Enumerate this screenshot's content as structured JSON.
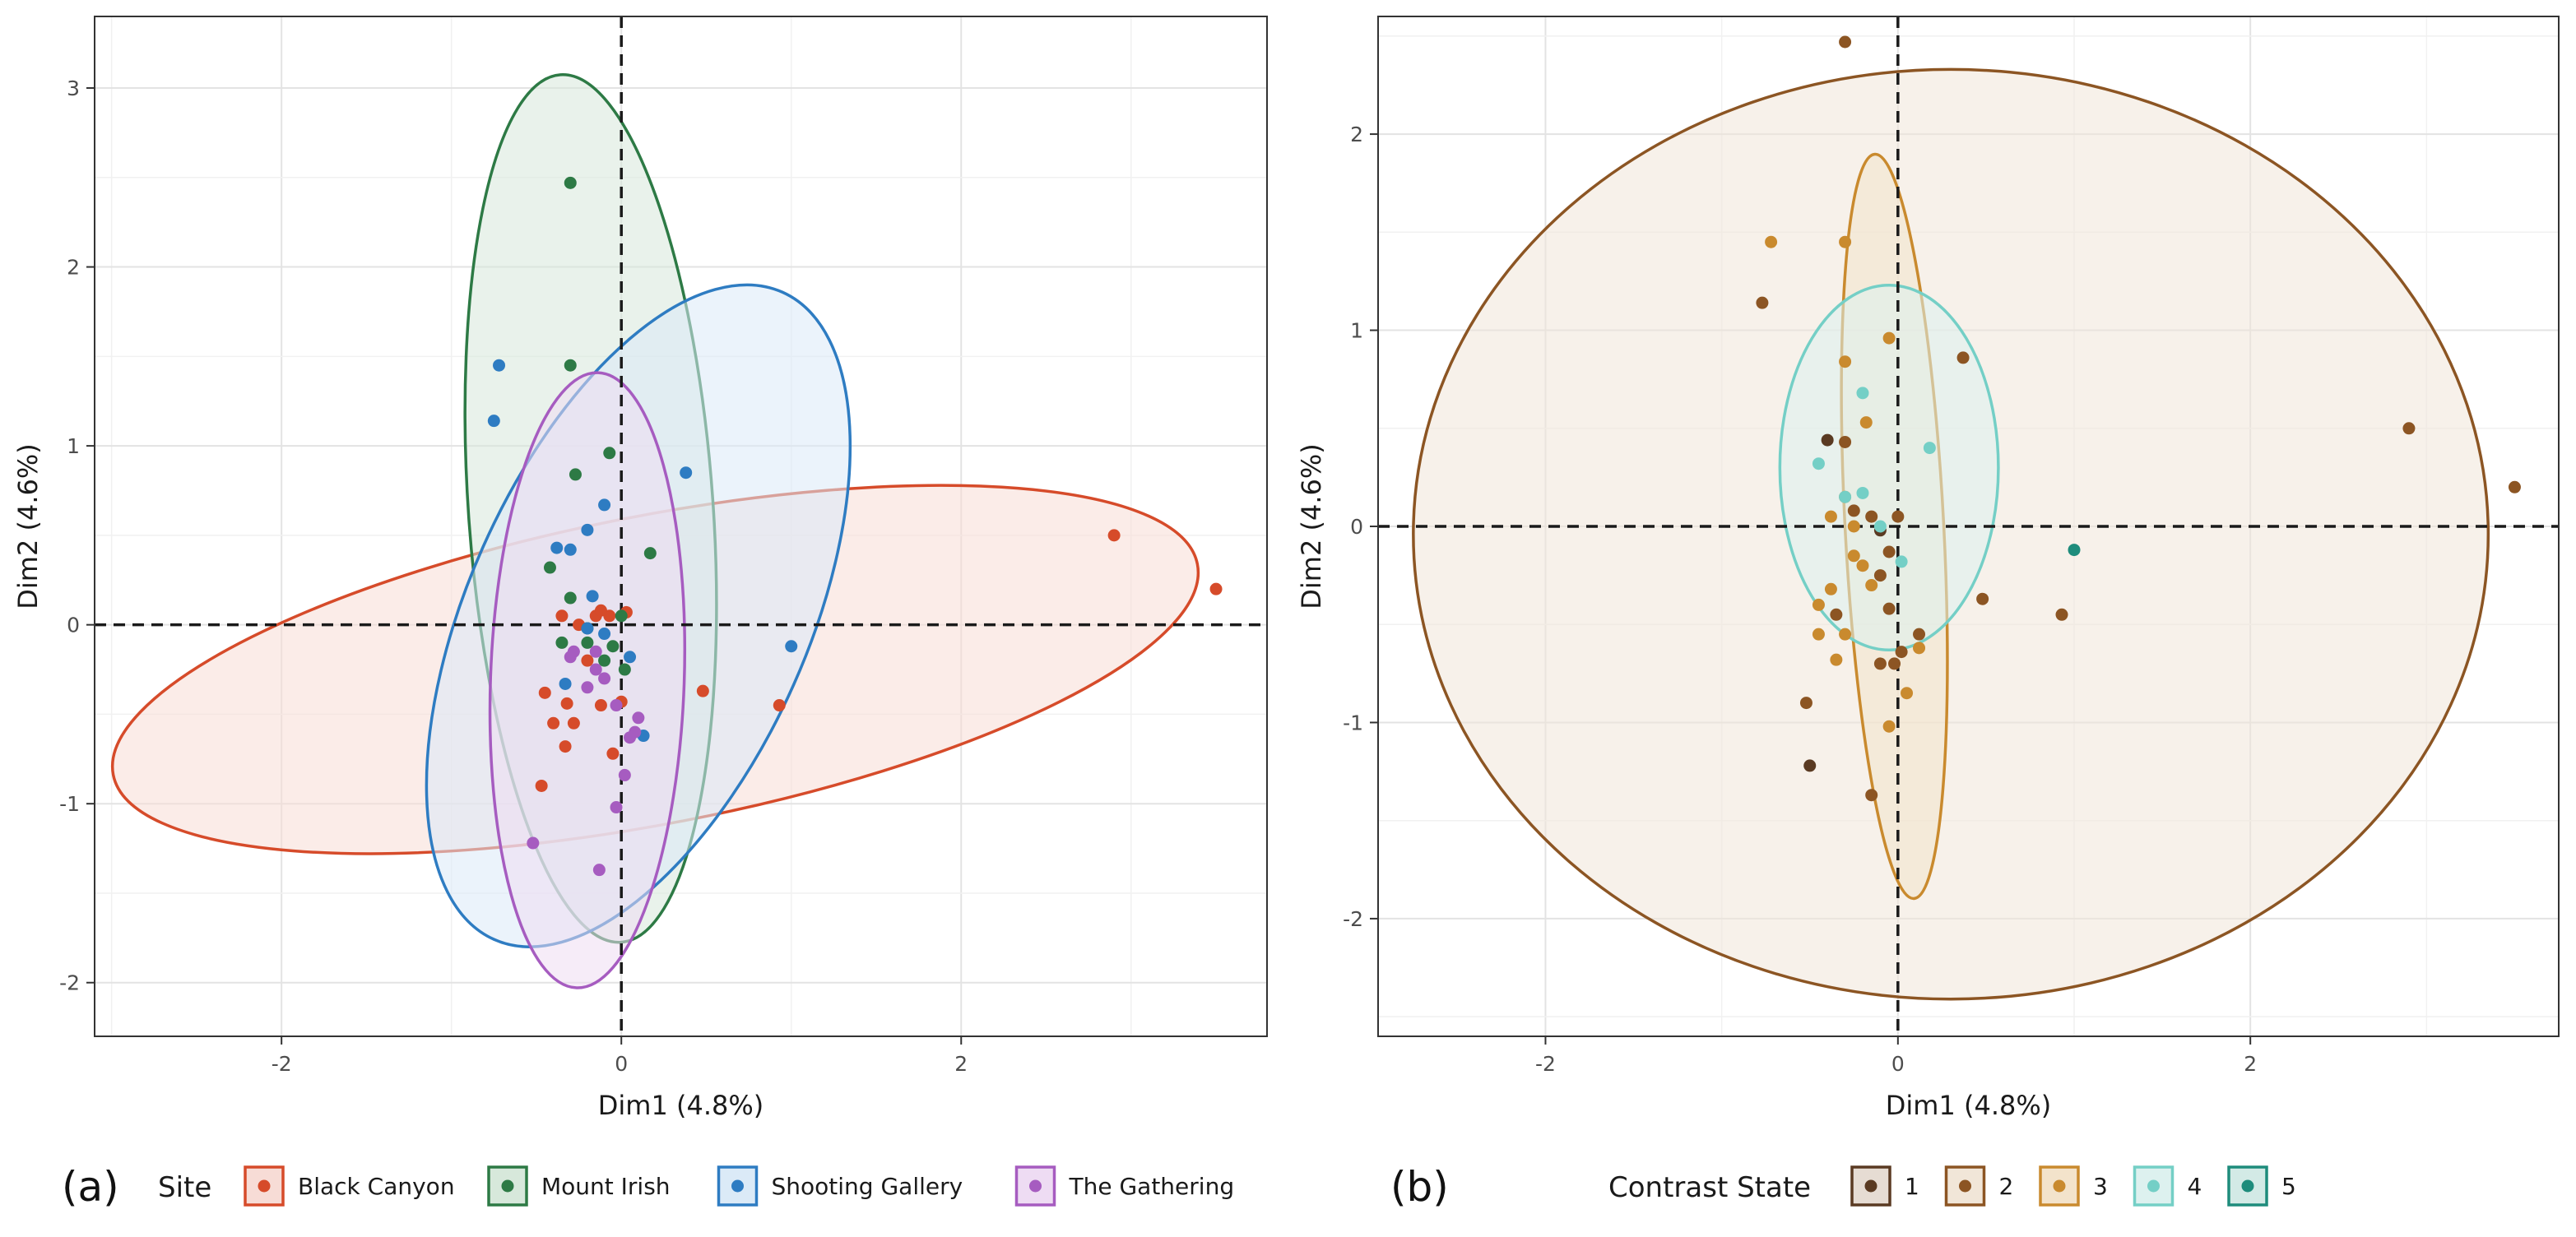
{
  "chart_data": [
    {
      "panel_label": "(a)",
      "type": "scatter",
      "xlabel": "Dim1 (4.8%)",
      "ylabel": "Dim2 (4.6%)",
      "xlim": [
        -3.1,
        3.8
      ],
      "ylim": [
        -2.3,
        3.4
      ],
      "x_ticks": [
        -2,
        0,
        2
      ],
      "y_ticks": [
        -2,
        -1,
        0,
        1,
        2,
        3
      ],
      "x_tick_labels": [
        "-2",
        "0",
        "2"
      ],
      "y_tick_labels": [
        "-2",
        "-1",
        "0",
        "1",
        "2",
        "3"
      ],
      "grid": true,
      "reference_lines": {
        "x": 0,
        "y": 0
      },
      "legend": {
        "title": "Site",
        "position": "bottom"
      },
      "series": [
        {
          "name": "Black Canyon",
          "color": "#D64B2A",
          "fill": "#F7DCD6",
          "ellipse": {
            "cx": 0.2,
            "cy": -0.25,
            "rx": 3.25,
            "ry": 0.86,
            "angle_deg": 11
          },
          "points": [
            [
              2.9,
              0.5
            ],
            [
              3.5,
              0.2
            ],
            [
              0.93,
              -0.45
            ],
            [
              0.48,
              -0.37
            ],
            [
              -0.45,
              -0.38
            ],
            [
              -0.4,
              -0.55
            ],
            [
              -0.32,
              -0.44
            ],
            [
              -0.28,
              -0.55
            ],
            [
              -0.33,
              -0.68
            ],
            [
              -0.12,
              -0.45
            ],
            [
              0.0,
              -0.43
            ],
            [
              -0.05,
              -0.72
            ],
            [
              -0.47,
              -0.9
            ],
            [
              -0.35,
              0.05
            ],
            [
              -0.15,
              0.05
            ],
            [
              -0.07,
              0.05
            ],
            [
              0.03,
              0.07
            ],
            [
              -0.25,
              0.0
            ],
            [
              -0.12,
              0.08
            ],
            [
              -0.2,
              -0.2
            ]
          ]
        },
        {
          "name": "Mount Irish",
          "color": "#2D7A45",
          "fill": "#D7E8DB",
          "ellipse": {
            "cx": -0.18,
            "cy": 0.65,
            "rx": 0.72,
            "ry": 2.43,
            "angle_deg": 4
          },
          "points": [
            [
              -0.3,
              2.47
            ],
            [
              -0.3,
              1.45
            ],
            [
              -0.27,
              0.84
            ],
            [
              -0.07,
              0.96
            ],
            [
              0.17,
              0.4
            ],
            [
              -0.42,
              0.32
            ],
            [
              -0.3,
              0.15
            ],
            [
              0.0,
              0.05
            ],
            [
              -0.05,
              -0.12
            ],
            [
              -0.2,
              -0.02
            ],
            [
              -0.35,
              -0.1
            ],
            [
              0.02,
              -0.25
            ],
            [
              -0.1,
              -0.2
            ],
            [
              -0.2,
              -0.1
            ]
          ]
        },
        {
          "name": "Shooting Gallery",
          "color": "#2E7CC2",
          "fill": "#DBEAF7",
          "ellipse": {
            "cx": 0.1,
            "cy": 0.05,
            "rx": 1.0,
            "ry": 1.98,
            "angle_deg": -24
          },
          "points": [
            [
              -0.72,
              1.45
            ],
            [
              -0.75,
              1.14
            ],
            [
              0.38,
              0.85
            ],
            [
              -0.1,
              0.67
            ],
            [
              -0.2,
              0.53
            ],
            [
              -0.38,
              0.43
            ],
            [
              -0.3,
              0.42
            ],
            [
              1.0,
              -0.12
            ],
            [
              -0.17,
              0.16
            ],
            [
              -0.2,
              -0.02
            ],
            [
              0.05,
              -0.18
            ],
            [
              -0.33,
              -0.33
            ],
            [
              0.13,
              -0.62
            ],
            [
              -0.1,
              -0.05
            ]
          ]
        },
        {
          "name": "The Gathering",
          "color": "#A65CC0",
          "fill": "#EEDCF3",
          "ellipse": {
            "cx": -0.2,
            "cy": -0.31,
            "rx": 0.57,
            "ry": 1.72,
            "angle_deg": -2
          },
          "points": [
            [
              -0.52,
              -1.22
            ],
            [
              -0.13,
              -1.37
            ],
            [
              -0.03,
              -1.02
            ],
            [
              0.02,
              -0.84
            ],
            [
              0.05,
              -0.63
            ],
            [
              0.1,
              -0.52
            ],
            [
              0.08,
              -0.6
            ],
            [
              -0.03,
              -0.45
            ],
            [
              -0.15,
              -0.15
            ],
            [
              -0.28,
              -0.15
            ],
            [
              -0.15,
              -0.25
            ],
            [
              -0.3,
              -0.18
            ],
            [
              -0.1,
              -0.3
            ],
            [
              -0.2,
              -0.35
            ]
          ]
        }
      ]
    },
    {
      "panel_label": "(b)",
      "type": "scatter",
      "xlabel": "Dim1 (4.8%)",
      "ylabel": "Dim2 (4.6%)",
      "xlim": [
        -2.95,
        3.75
      ],
      "ylim": [
        -2.6,
        2.6
      ],
      "x_ticks": [
        -2,
        0,
        2
      ],
      "y_ticks": [
        -2,
        -1,
        0,
        1,
        2
      ],
      "x_tick_labels": [
        "-2",
        "0",
        "2"
      ],
      "y_tick_labels": [
        "-2",
        "-1",
        "0",
        "1",
        "2"
      ],
      "grid": true,
      "reference_lines": {
        "x": 0,
        "y": 0
      },
      "legend": {
        "title": "Contrast State",
        "position": "bottom"
      },
      "series": [
        {
          "name": "1",
          "color": "#5A3A22",
          "fill": "#E6DCD3",
          "points": [
            [
              -0.4,
              0.44
            ],
            [
              -0.1,
              -0.02
            ],
            [
              -0.5,
              -1.22
            ]
          ]
        },
        {
          "name": "2",
          "color": "#8C5523",
          "fill": "#F1E6D8",
          "ellipse": {
            "cx": 0.3,
            "cy": -0.04,
            "rx": 3.05,
            "ry": 2.37,
            "angle_deg": 0
          },
          "points": [
            [
              -0.3,
              2.47
            ],
            [
              -0.77,
              1.14
            ],
            [
              -0.3,
              0.43
            ],
            [
              0.37,
              0.86
            ],
            [
              2.9,
              0.5
            ],
            [
              3.5,
              0.2
            ],
            [
              0.93,
              -0.45
            ],
            [
              0.48,
              -0.37
            ],
            [
              0.12,
              -0.55
            ],
            [
              -0.05,
              -0.42
            ],
            [
              0.02,
              -0.64
            ],
            [
              -0.02,
              -0.7
            ],
            [
              -0.1,
              -0.7
            ],
            [
              -0.05,
              -0.13
            ],
            [
              -0.15,
              0.05
            ],
            [
              -0.1,
              -0.25
            ],
            [
              0.0,
              0.05
            ],
            [
              -0.35,
              -0.45
            ],
            [
              -0.52,
              -0.9
            ],
            [
              -0.15,
              -1.37
            ],
            [
              -0.25,
              0.08
            ]
          ]
        },
        {
          "name": "3",
          "color": "#C98A2E",
          "fill": "#F3E3CB",
          "ellipse": {
            "cx": -0.02,
            "cy": 0.0,
            "rx": 0.28,
            "ry": 1.9,
            "angle_deg": 3
          },
          "points": [
            [
              -0.72,
              1.45
            ],
            [
              -0.3,
              1.45
            ],
            [
              -0.05,
              0.96
            ],
            [
              -0.3,
              0.84
            ],
            [
              -0.18,
              0.53
            ],
            [
              -0.38,
              0.05
            ],
            [
              -0.3,
              0.15
            ],
            [
              -0.25,
              -0.15
            ],
            [
              -0.45,
              -0.4
            ],
            [
              -0.38,
              -0.32
            ],
            [
              -0.35,
              -0.68
            ],
            [
              -0.3,
              -0.55
            ],
            [
              -0.45,
              -0.55
            ],
            [
              -0.2,
              -0.2
            ],
            [
              0.05,
              -0.85
            ],
            [
              -0.05,
              -1.02
            ],
            [
              0.12,
              -0.62
            ],
            [
              -0.15,
              -0.3
            ],
            [
              -0.25,
              0.0
            ]
          ]
        },
        {
          "name": "4",
          "color": "#74CFC6",
          "fill": "#DDF1EF",
          "ellipse": {
            "cx": -0.05,
            "cy": 0.3,
            "rx": 0.62,
            "ry": 0.93,
            "angle_deg": 0
          },
          "points": [
            [
              -0.2,
              0.68
            ],
            [
              0.18,
              0.4
            ],
            [
              -0.45,
              0.32
            ],
            [
              -0.3,
              0.15
            ],
            [
              -0.2,
              0.17
            ],
            [
              0.02,
              -0.18
            ],
            [
              -0.1,
              0.0
            ]
          ]
        },
        {
          "name": "5",
          "color": "#1E8C7C",
          "fill": "#D3EAE6",
          "points": [
            [
              1.0,
              -0.12
            ]
          ]
        }
      ]
    }
  ]
}
